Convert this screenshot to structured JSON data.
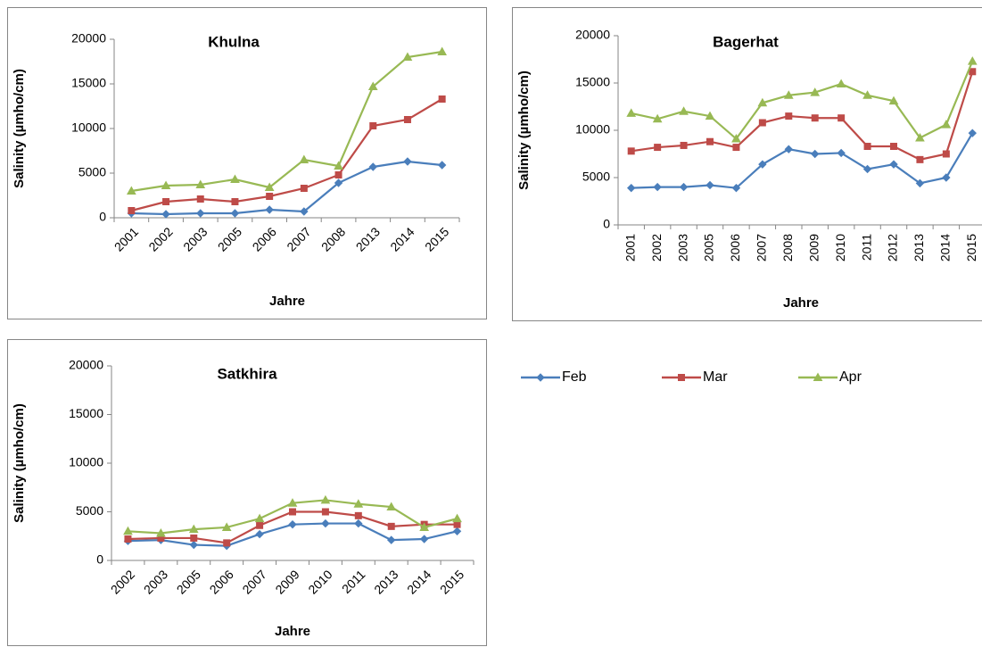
{
  "chart_data": [
    {
      "type": "line",
      "title": "Khulna",
      "x_label": "Jahre",
      "y_label": "Salinity (µmho/cm)",
      "categories": [
        "2001",
        "2002",
        "2003",
        "2005",
        "2006",
        "2007",
        "2008",
        "2013",
        "2014",
        "2015"
      ],
      "ylim": [
        0,
        20000
      ],
      "yticks": [
        0,
        5000,
        10000,
        15000,
        20000
      ],
      "series": [
        {
          "name": "Feb",
          "color": "#4a7ebb",
          "values": [
            500,
            400,
            500,
            500,
            900,
            700,
            3900,
            5700,
            6300,
            5900
          ]
        },
        {
          "name": "Mar",
          "color": "#be4b48",
          "values": [
            800,
            1800,
            2100,
            1800,
            2400,
            3300,
            4800,
            10300,
            11000,
            13300
          ]
        },
        {
          "name": "Apr",
          "color": "#98b954",
          "values": [
            3000,
            3600,
            3700,
            4300,
            3400,
            6500,
            5800,
            14700,
            18000,
            18600
          ]
        }
      ]
    },
    {
      "type": "line",
      "title": "Bagerhat",
      "x_label": "Jahre",
      "y_label": "Salinity (µmho/cm)",
      "categories": [
        "2001",
        "2002",
        "2003",
        "2005",
        "2006",
        "2007",
        "2008",
        "2009",
        "2010",
        "2011",
        "2012",
        "2013",
        "2014",
        "2015"
      ],
      "ylim": [
        0,
        20000
      ],
      "yticks": [
        0,
        5000,
        10000,
        15000,
        20000
      ],
      "series": [
        {
          "name": "Feb",
          "color": "#4a7ebb",
          "values": [
            3900,
            4000,
            4000,
            4200,
            3900,
            6400,
            8000,
            7500,
            7600,
            5900,
            6400,
            4400,
            5000,
            9700
          ]
        },
        {
          "name": "Mar",
          "color": "#be4b48",
          "values": [
            7800,
            8200,
            8400,
            8800,
            8200,
            10800,
            11500,
            11300,
            11300,
            8300,
            8300,
            6900,
            7500,
            16200
          ]
        },
        {
          "name": "Apr",
          "color": "#98b954",
          "values": [
            11800,
            11200,
            12000,
            11500,
            9100,
            12900,
            13700,
            14000,
            14900,
            13700,
            13100,
            9200,
            10600,
            17300
          ]
        }
      ]
    },
    {
      "type": "line",
      "title": "Satkhira",
      "x_label": "Jahre",
      "y_label": "Salinity (µmho/cm)",
      "categories": [
        "2002",
        "2003",
        "2005",
        "2006",
        "2007",
        "2009",
        "2010",
        "2011",
        "2013",
        "2014",
        "2015"
      ],
      "ylim": [
        0,
        20000
      ],
      "yticks": [
        0,
        5000,
        10000,
        15000,
        20000
      ],
      "series": [
        {
          "name": "Feb",
          "color": "#4a7ebb",
          "values": [
            2000,
            2100,
            1600,
            1500,
            2700,
            3700,
            3800,
            3800,
            2100,
            2200,
            3000
          ]
        },
        {
          "name": "Mar",
          "color": "#be4b48",
          "values": [
            2200,
            2300,
            2300,
            1800,
            3600,
            5000,
            5000,
            4600,
            3500,
            3700,
            3700
          ]
        },
        {
          "name": "Apr",
          "color": "#98b954",
          "values": [
            3000,
            2800,
            3200,
            3400,
            4300,
            5900,
            6200,
            5800,
            5500,
            3400,
            4300
          ]
        }
      ]
    }
  ]
}
